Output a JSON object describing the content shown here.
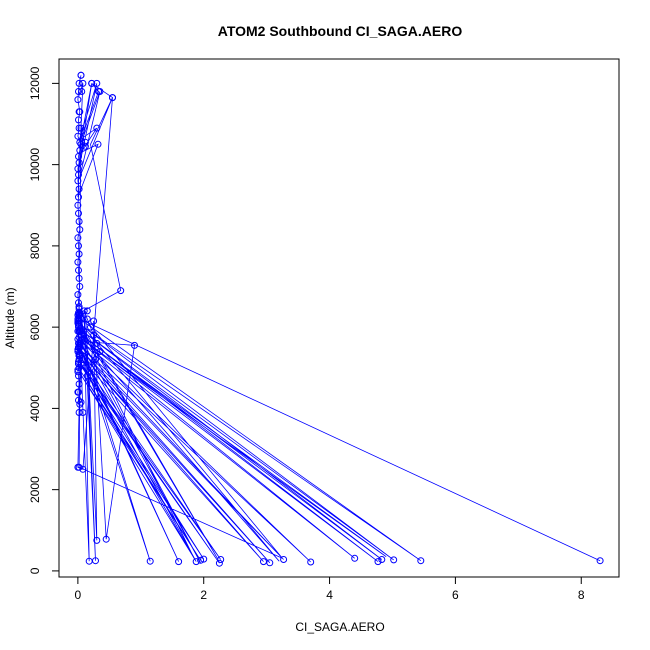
{
  "chart_data": {
    "type": "scatter",
    "title": "ATOM2 Southbound CI_SAGA.AERO",
    "xlabel": "CI_SAGA.AERO",
    "ylabel": "Altitude (m)",
    "xlim": [
      -0.3,
      8.6
    ],
    "ylim": [
      -150,
      12600
    ],
    "xticks": [
      0,
      2,
      4,
      6,
      8
    ],
    "xtick_labels": [
      "0",
      "2",
      "4",
      "6",
      "8"
    ],
    "yticks": [
      0,
      2000,
      4000,
      6000,
      8000,
      10000,
      12000
    ],
    "ytick_labels": [
      "0",
      "2000",
      "4000",
      "6000",
      "8000",
      "10000",
      "12000"
    ],
    "grid": false,
    "color": "#0000ff",
    "series": [
      {
        "x": [
          0.05,
          0.02,
          0.01,
          0.0,
          0.03,
          0.01,
          0.02,
          0.0,
          0.05,
          0.03,
          0.01,
          0.02,
          0.0,
          0.01,
          0.0,
          0.02,
          0.01,
          0.0,
          0.01,
          0.02,
          0.03,
          0.0,
          0.01,
          0.02,
          0.0,
          0.01,
          0.02,
          0.03,
          0.0,
          0.01,
          0.02,
          0.02,
          0.0,
          0.01,
          0.01,
          0.03,
          0.05,
          0.07,
          0.02,
          0.01,
          0.0,
          0.03,
          0.02,
          0.01,
          0.02,
          0.0,
          0.01,
          0.02,
          0.0,
          0.01,
          0.03,
          0.02,
          0.05,
          0.02,
          0.0,
          0.01,
          0.02,
          0.0,
          0.01,
          0.02,
          0.03,
          0.02,
          0.0,
          0.01,
          0.02,
          0.0,
          0.01,
          0.02,
          0.01,
          0.0,
          0.01,
          0.02,
          0.03,
          0.05,
          0.03,
          0.0,
          0.01,
          0.02,
          0.03,
          0.0,
          0.05,
          0.07,
          0.03,
          0.02,
          0.1,
          0.15,
          0.2,
          0.25,
          0.3,
          0.35,
          0.28,
          0.2,
          0.15,
          0.08,
          0.04,
          0.0,
          0.08,
          0.55,
          0.22,
          0.33,
          0.03,
          0.12,
          0.05,
          0.02
        ],
        "y": [
          12200,
          12000,
          11800,
          11600,
          11300,
          11100,
          10900,
          10700,
          10500,
          10350,
          10200,
          10050,
          9900,
          9750,
          9600,
          9400,
          9200,
          9000,
          8800,
          8600,
          8400,
          8200,
          8000,
          7800,
          7600,
          7400,
          7200,
          7000,
          6800,
          6600,
          6450,
          6300,
          6200,
          6100,
          6000,
          5900,
          5800,
          5700,
          5600,
          5500,
          5400,
          5300,
          5200,
          5100,
          5000,
          4900,
          4800,
          4600,
          4400,
          4200,
          4100,
          3900,
          5100,
          5300,
          5450,
          5600,
          5750,
          5900,
          6050,
          6200,
          6350,
          6500,
          6300,
          6100,
          5900,
          5700,
          5500,
          5300,
          5100,
          4950,
          5150,
          5350,
          5550,
          5750,
          5950,
          6150,
          6350,
          6500,
          6300,
          6100,
          5900,
          5700,
          5500,
          5300,
          6400,
          6200,
          6000,
          5800,
          5600,
          5400,
          5200,
          5000,
          4800,
          5200,
          5600,
          2550,
          2500,
          11650,
          12000,
          11800,
          10550,
          10450,
          10900,
          6150
        ],
        "path": [
          [
            8.3,
            250
          ],
          [
            0.03,
            6200
          ],
          [
            5.45,
            250
          ],
          [
            0.05,
            6050
          ],
          [
            5.02,
            270
          ],
          [
            0.03,
            5950
          ],
          [
            4.83,
            280
          ],
          [
            0.02,
            5850
          ],
          [
            4.77,
            230
          ],
          [
            0.04,
            5750
          ],
          [
            4.4,
            310
          ],
          [
            0.05,
            5650
          ],
          [
            3.7,
            220
          ],
          [
            0.03,
            5550
          ],
          [
            3.27,
            280
          ],
          [
            0.04,
            5450
          ],
          [
            3.05,
            200
          ],
          [
            0.05,
            5350
          ],
          [
            2.95,
            230
          ],
          [
            0.04,
            5250
          ],
          [
            2.27,
            280
          ],
          [
            0.03,
            5150
          ],
          [
            2.25,
            190
          ],
          [
            0.05,
            5050
          ],
          [
            2.0,
            290
          ],
          [
            0.03,
            4950
          ],
          [
            1.95,
            260
          ],
          [
            0.04,
            4850
          ],
          [
            1.88,
            230
          ],
          [
            0.05,
            5400
          ],
          [
            1.6,
            230
          ],
          [
            0.04,
            5500
          ],
          [
            1.15,
            240
          ],
          [
            0.06,
            5650
          ],
          [
            0.9,
            5550
          ],
          [
            0.45,
            780
          ],
          [
            0.25,
            6150
          ],
          [
            0.3,
            750
          ],
          [
            0.12,
            6400
          ],
          [
            0.28,
            250
          ],
          [
            0.1,
            6300
          ],
          [
            0.18,
            240
          ],
          [
            0.05,
            5100
          ],
          [
            1.85,
            300
          ],
          [
            0.05,
            6000
          ],
          [
            2.22,
            300
          ],
          [
            0.04,
            6100
          ],
          [
            3.2,
            240
          ],
          [
            0.05,
            5800
          ],
          [
            4.9,
            350
          ],
          [
            0.06,
            5700
          ],
          [
            1.95,
            200
          ],
          [
            0.04,
            5600
          ],
          [
            0.02,
            2550
          ],
          [
            3.25,
            310
          ],
          [
            0.03,
            6350
          ],
          [
            0.68,
            6900
          ],
          [
            0.2,
            10500
          ],
          [
            0.55,
            11650
          ],
          [
            0.03,
            9700
          ],
          [
            0.35,
            11800
          ],
          [
            0.02,
            10400
          ],
          [
            0.22,
            12000
          ],
          [
            0.0,
            9800
          ],
          [
            0.3,
            12000
          ],
          [
            0.02,
            10600
          ],
          [
            0.3,
            10900
          ],
          [
            0.05,
            10300
          ],
          [
            0.32,
            10500
          ],
          [
            0.0,
            9200
          ],
          [
            0.08,
            12000
          ],
          [
            0.02,
            11700
          ]
        ],
        "extra_points": [
          [
            8.3,
            250
          ],
          [
            5.45,
            250
          ],
          [
            5.02,
            270
          ],
          [
            4.83,
            280
          ],
          [
            4.77,
            230
          ],
          [
            4.4,
            310
          ],
          [
            3.7,
            220
          ],
          [
            3.27,
            280
          ],
          [
            3.05,
            200
          ],
          [
            2.95,
            230
          ],
          [
            2.27,
            280
          ],
          [
            2.25,
            190
          ],
          [
            2.0,
            290
          ],
          [
            1.95,
            260
          ],
          [
            1.88,
            230
          ],
          [
            1.6,
            230
          ],
          [
            1.15,
            240
          ],
          [
            0.9,
            5550
          ],
          [
            0.68,
            6900
          ],
          [
            0.45,
            780
          ],
          [
            0.3,
            750
          ],
          [
            0.28,
            250
          ],
          [
            0.18,
            240
          ],
          [
            0.55,
            11650
          ],
          [
            0.35,
            11800
          ],
          [
            0.32,
            10500
          ],
          [
            0.3,
            10900
          ],
          [
            0.3,
            12000
          ],
          [
            0.22,
            12000
          ],
          [
            0.08,
            12000
          ],
          [
            0.05,
            12200
          ],
          [
            0.06,
            11800
          ],
          [
            0.02,
            11300
          ],
          [
            0.12,
            10550
          ],
          [
            0.25,
            6150
          ],
          [
            0.15,
            6400
          ],
          [
            0.08,
            3900
          ],
          [
            0.02,
            2550
          ],
          [
            0.01,
            4400
          ],
          [
            0.05,
            4150
          ]
        ]
      }
    ]
  }
}
